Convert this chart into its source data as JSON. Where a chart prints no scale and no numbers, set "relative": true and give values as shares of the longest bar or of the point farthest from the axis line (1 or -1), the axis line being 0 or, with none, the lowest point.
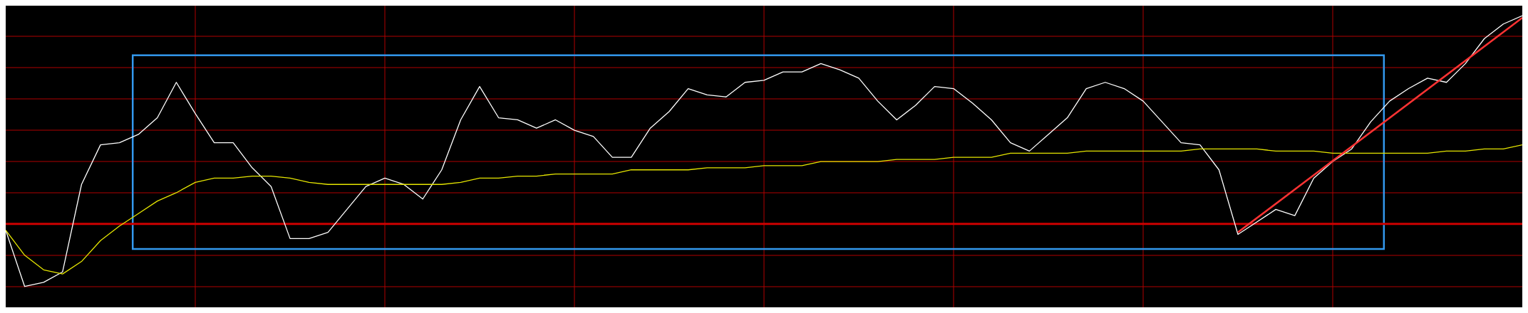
{
  "chart_data": {
    "type": "line",
    "relative": true,
    "grid": true,
    "legend": false,
    "marker": "none",
    "categories": [
      null,
      null,
      null,
      null,
      null,
      null,
      null,
      null,
      null,
      null,
      null,
      null,
      null,
      null,
      null,
      null,
      null,
      null,
      null,
      null,
      null,
      null,
      null,
      null,
      null,
      null,
      null,
      null,
      null,
      null,
      null,
      null,
      null,
      null,
      null,
      null,
      null,
      null,
      null,
      null,
      null,
      null,
      null,
      null,
      null,
      null,
      null,
      null,
      null,
      null,
      null,
      null,
      null,
      null,
      null,
      null,
      null,
      null,
      null,
      null,
      null,
      null,
      null,
      null,
      null,
      null,
      null,
      null,
      null,
      null,
      null,
      null,
      null,
      null,
      null,
      null,
      null,
      null,
      null,
      null,
      null
    ],
    "series": [
      {
        "color": "#ffffff",
        "values": [
          -0.03,
          -0.3,
          -0.28,
          -0.23,
          0.19,
          0.38,
          0.39,
          0.43,
          0.51,
          0.68,
          0.53,
          0.39,
          0.39,
          0.27,
          0.18,
          -0.07,
          -0.07,
          -0.04,
          0.07,
          0.18,
          0.22,
          0.19,
          0.12,
          0.26,
          0.5,
          0.66,
          0.51,
          0.5,
          0.46,
          0.5,
          0.45,
          0.42,
          0.32,
          0.32,
          0.46,
          0.54,
          0.65,
          0.62,
          0.61,
          0.68,
          0.69,
          0.73,
          0.73,
          0.77,
          0.74,
          0.7,
          0.59,
          0.5,
          0.57,
          0.66,
          0.65,
          0.58,
          0.5,
          0.39,
          0.35,
          0.43,
          0.51,
          0.65,
          0.68,
          0.65,
          0.59,
          0.49,
          0.39,
          0.38,
          0.26,
          -0.05,
          0.01,
          0.07,
          0.04,
          0.22,
          0.3,
          0.36,
          0.49,
          0.59,
          0.65,
          0.7,
          0.68,
          0.77,
          0.89,
          0.96,
          1.0
        ]
      },
      {
        "color": "#e6e600",
        "values": [
          -0.03,
          -0.15,
          -0.22,
          -0.24,
          -0.18,
          -0.08,
          -0.01,
          0.05,
          0.11,
          0.15,
          0.2,
          0.22,
          0.22,
          0.23,
          0.23,
          0.22,
          0.2,
          0.19,
          0.19,
          0.19,
          0.19,
          0.19,
          0.19,
          0.19,
          0.2,
          0.22,
          0.22,
          0.23,
          0.23,
          0.24,
          0.24,
          0.24,
          0.24,
          0.26,
          0.26,
          0.26,
          0.26,
          0.27,
          0.27,
          0.27,
          0.28,
          0.28,
          0.28,
          0.3,
          0.3,
          0.3,
          0.3,
          0.31,
          0.31,
          0.31,
          0.32,
          0.32,
          0.32,
          0.34,
          0.34,
          0.34,
          0.34,
          0.35,
          0.35,
          0.35,
          0.35,
          0.35,
          0.35,
          0.36,
          0.36,
          0.36,
          0.36,
          0.35,
          0.35,
          0.35,
          0.34,
          0.34,
          0.34,
          0.34,
          0.34,
          0.34,
          0.35,
          0.35,
          0.36,
          0.36,
          0.38
        ]
      },
      {
        "type": "line",
        "color": "#ff3333",
        "values": [
          null,
          null,
          null,
          null,
          null,
          null,
          null,
          null,
          null,
          null,
          null,
          null,
          null,
          null,
          null,
          null,
          null,
          null,
          null,
          null,
          null,
          null,
          null,
          null,
          null,
          null,
          null,
          null,
          null,
          null,
          null,
          null,
          null,
          null,
          null,
          null,
          null,
          null,
          null,
          null,
          null,
          null,
          null,
          null,
          null,
          null,
          null,
          null,
          null,
          null,
          null,
          null,
          null,
          null,
          null,
          null,
          null,
          null,
          null,
          null,
          null,
          null,
          null,
          null,
          null,
          -0.04,
          null,
          null,
          null,
          null,
          null,
          null,
          null,
          null,
          null,
          null,
          null,
          null,
          null,
          null,
          0.99
        ]
      }
    ],
    "ref_lines": [
      {
        "axis": "y",
        "value": 0,
        "color": "#cc0000"
      }
    ]
  }
}
